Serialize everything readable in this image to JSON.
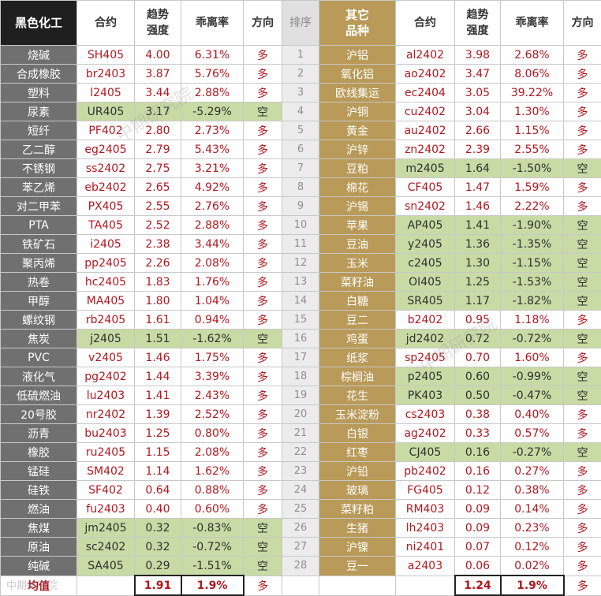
{
  "left": {
    "headers": {
      "group": "黑色化工",
      "contract": "合约",
      "strength": "趋势\n强度",
      "deviation": "乖离率",
      "direction": "方向"
    },
    "rows": [
      {
        "name": "烧碱",
        "code": "SH405",
        "strength": "4.00",
        "deviation": "6.31%",
        "direction": "多"
      },
      {
        "name": "合成橡胶",
        "code": "br2403",
        "strength": "3.87",
        "deviation": "5.76%",
        "direction": "多"
      },
      {
        "name": "塑料",
        "code": "l2405",
        "strength": "3.44",
        "deviation": "2.88%",
        "direction": "多"
      },
      {
        "name": "尿素",
        "code": "UR405",
        "strength": "3.17",
        "deviation": "-5.29%",
        "direction": "空"
      },
      {
        "name": "短纤",
        "code": "PF402",
        "strength": "2.80",
        "deviation": "2.73%",
        "direction": "多"
      },
      {
        "name": "乙二醇",
        "code": "eg2405",
        "strength": "2.79",
        "deviation": "5.43%",
        "direction": "多"
      },
      {
        "name": "不锈钢",
        "code": "ss2402",
        "strength": "2.75",
        "deviation": "3.21%",
        "direction": "多"
      },
      {
        "name": "苯乙烯",
        "code": "eb2402",
        "strength": "2.65",
        "deviation": "4.92%",
        "direction": "多"
      },
      {
        "name": "对二甲苯",
        "code": "PX405",
        "strength": "2.55",
        "deviation": "2.76%",
        "direction": "多"
      },
      {
        "name": "PTA",
        "code": "TA405",
        "strength": "2.52",
        "deviation": "2.88%",
        "direction": "多"
      },
      {
        "name": "铁矿石",
        "code": "i2405",
        "strength": "2.38",
        "deviation": "3.44%",
        "direction": "多"
      },
      {
        "name": "聚丙烯",
        "code": "pp2405",
        "strength": "2.26",
        "deviation": "2.08%",
        "direction": "多"
      },
      {
        "name": "热卷",
        "code": "hc2405",
        "strength": "1.83",
        "deviation": "1.76%",
        "direction": "多"
      },
      {
        "name": "甲醇",
        "code": "MA405",
        "strength": "1.80",
        "deviation": "1.04%",
        "direction": "多"
      },
      {
        "name": "螺纹钢",
        "code": "rb2405",
        "strength": "1.61",
        "deviation": "0.94%",
        "direction": "多"
      },
      {
        "name": "焦炭",
        "code": "j2405",
        "strength": "1.51",
        "deviation": "-1.62%",
        "direction": "空"
      },
      {
        "name": "PVC",
        "code": "v2405",
        "strength": "1.46",
        "deviation": "1.75%",
        "direction": "多"
      },
      {
        "name": "液化气",
        "code": "pg2402",
        "strength": "1.44",
        "deviation": "3.39%",
        "direction": "多"
      },
      {
        "name": "低硫燃油",
        "code": "lu2403",
        "strength": "1.41",
        "deviation": "2.43%",
        "direction": "多"
      },
      {
        "name": "20号胶",
        "code": "nr2402",
        "strength": "1.39",
        "deviation": "2.52%",
        "direction": "多"
      },
      {
        "name": "沥青",
        "code": "bu2403",
        "strength": "1.25",
        "deviation": "0.80%",
        "direction": "多"
      },
      {
        "name": "橡胶",
        "code": "ru2405",
        "strength": "1.15",
        "deviation": "2.08%",
        "direction": "多"
      },
      {
        "name": "锰硅",
        "code": "SM402",
        "strength": "1.14",
        "deviation": "1.62%",
        "direction": "多"
      },
      {
        "name": "硅铁",
        "code": "SF402",
        "strength": "0.64",
        "deviation": "0.88%",
        "direction": "多"
      },
      {
        "name": "燃油",
        "code": "fu2403",
        "strength": "0.40",
        "deviation": "0.60%",
        "direction": "多"
      },
      {
        "name": "焦煤",
        "code": "jm2405",
        "strength": "0.32",
        "deviation": "-0.83%",
        "direction": "空"
      },
      {
        "name": "原油",
        "code": "sc2402",
        "strength": "0.32",
        "deviation": "-0.72%",
        "direction": "空"
      },
      {
        "name": "纯碱",
        "code": "SA405",
        "strength": "0.29",
        "deviation": "-1.51%",
        "direction": "空"
      }
    ],
    "average": {
      "label": "均值",
      "strength": "1.91",
      "deviation": "1.9%",
      "direction": "多"
    }
  },
  "rank": {
    "header": "排序",
    "values": [
      "1",
      "2",
      "3",
      "4",
      "5",
      "6",
      "7",
      "8",
      "9",
      "10",
      "11",
      "12",
      "13",
      "14",
      "15",
      "16",
      "17",
      "18",
      "19",
      "20",
      "21",
      "22",
      "23",
      "24",
      "25",
      "26",
      "27",
      "28"
    ]
  },
  "right": {
    "headers": {
      "group": "其它\n品种",
      "contract": "合约",
      "strength": "趋势\n强度",
      "deviation": "乖离率",
      "direction": "方向"
    },
    "rows": [
      {
        "name": "沪铝",
        "code": "al2402",
        "strength": "3.98",
        "deviation": "2.68%",
        "direction": "多"
      },
      {
        "name": "氧化铝",
        "code": "ao2402",
        "strength": "3.47",
        "deviation": "8.06%",
        "direction": "多"
      },
      {
        "name": "欧线集运",
        "code": "ec2404",
        "strength": "3.05",
        "deviation": "39.22%",
        "direction": "多"
      },
      {
        "name": "沪铜",
        "code": "cu2402",
        "strength": "3.04",
        "deviation": "1.30%",
        "direction": "多"
      },
      {
        "name": "黄金",
        "code": "au2402",
        "strength": "2.66",
        "deviation": "1.15%",
        "direction": "多"
      },
      {
        "name": "沪锌",
        "code": "zn2402",
        "strength": "2.39",
        "deviation": "2.55%",
        "direction": "多"
      },
      {
        "name": "豆粕",
        "code": "m2405",
        "strength": "1.64",
        "deviation": "-1.50%",
        "direction": "空"
      },
      {
        "name": "棉花",
        "code": "CF405",
        "strength": "1.47",
        "deviation": "1.59%",
        "direction": "多"
      },
      {
        "name": "沪锡",
        "code": "sn2402",
        "strength": "1.46",
        "deviation": "2.22%",
        "direction": "多"
      },
      {
        "name": "苹果",
        "code": "AP405",
        "strength": "1.41",
        "deviation": "-1.90%",
        "direction": "空"
      },
      {
        "name": "豆油",
        "code": "y2405",
        "strength": "1.36",
        "deviation": "-1.35%",
        "direction": "空"
      },
      {
        "name": "玉米",
        "code": "c2405",
        "strength": "1.30",
        "deviation": "-1.15%",
        "direction": "空"
      },
      {
        "name": "菜籽油",
        "code": "OI405",
        "strength": "1.25",
        "deviation": "-1.53%",
        "direction": "空"
      },
      {
        "name": "白糖",
        "code": "SR405",
        "strength": "1.17",
        "deviation": "-1.82%",
        "direction": "空"
      },
      {
        "name": "豆二",
        "code": "b2402",
        "strength": "0.95",
        "deviation": "1.18%",
        "direction": "多"
      },
      {
        "name": "鸡蛋",
        "code": "jd2402",
        "strength": "0.72",
        "deviation": "-0.72%",
        "direction": "空"
      },
      {
        "name": "纸浆",
        "code": "sp2405",
        "strength": "0.70",
        "deviation": "1.60%",
        "direction": "多"
      },
      {
        "name": "棕榈油",
        "code": "p2405",
        "strength": "0.60",
        "deviation": "-0.99%",
        "direction": "空"
      },
      {
        "name": "花生",
        "code": "PK403",
        "strength": "0.50",
        "deviation": "-0.47%",
        "direction": "空"
      },
      {
        "name": "玉米淀粉",
        "code": "cs2403",
        "strength": "0.38",
        "deviation": "0.40%",
        "direction": "多"
      },
      {
        "name": "白银",
        "code": "ag2402",
        "strength": "0.33",
        "deviation": "0.57%",
        "direction": "多"
      },
      {
        "name": "红枣",
        "code": "CJ405",
        "strength": "0.16",
        "deviation": "-0.27%",
        "direction": "空"
      },
      {
        "name": "沪铅",
        "code": "pb2402",
        "strength": "0.16",
        "deviation": "0.27%",
        "direction": "多"
      },
      {
        "name": "玻璃",
        "code": "FG405",
        "strength": "0.12",
        "deviation": "0.38%",
        "direction": "多"
      },
      {
        "name": "菜籽粕",
        "code": "RM403",
        "strength": "0.09",
        "deviation": "0.14%",
        "direction": "多"
      },
      {
        "name": "生猪",
        "code": "lh2403",
        "strength": "0.09",
        "deviation": "0.23%",
        "direction": "多"
      },
      {
        "name": "沪镍",
        "code": "ni2401",
        "strength": "0.07",
        "deviation": "0.12%",
        "direction": "多"
      },
      {
        "name": "豆一",
        "code": "a2403",
        "strength": "0.06",
        "deviation": "0.02%",
        "direction": "多"
      }
    ],
    "average": {
      "strength": "1.24",
      "deviation": "1.9%",
      "direction": "多"
    }
  },
  "watermarks": [
    "中期研究院",
    "中期研究院",
    "中期研究院"
  ],
  "colors": {
    "dark_header": "#1f1f1f",
    "gold": "#b99a58",
    "name_gray": "#707070",
    "short_green": "#c9dba5",
    "value_red": "#b0171f"
  }
}
